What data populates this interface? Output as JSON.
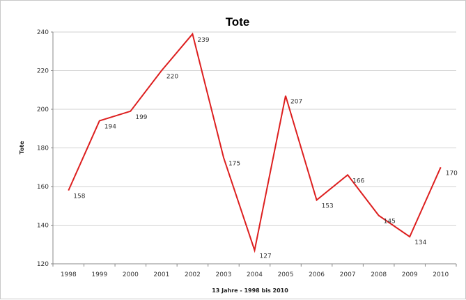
{
  "chart_data": {
    "type": "line",
    "title": "Tote",
    "xlabel": "13 Jahre - 1998 bis 2010",
    "ylabel": "Tote",
    "categories": [
      "1998",
      "1999",
      "2000",
      "2001",
      "2002",
      "2003",
      "2004",
      "2005",
      "2006",
      "2007",
      "2008",
      "2009",
      "2010"
    ],
    "series": [
      {
        "values": [
          158,
          194,
          199,
          220,
          239,
          175,
          127,
          207,
          153,
          166,
          145,
          134,
          170
        ]
      }
    ],
    "data_labels": [
      "158",
      "194",
      "199",
      "220",
      "239",
      "175",
      "127",
      "207",
      "153",
      "166",
      "145",
      "134",
      "170"
    ],
    "yticks": [
      120,
      140,
      160,
      180,
      200,
      220,
      240
    ],
    "ylim": [
      120,
      240
    ],
    "grid": true,
    "line_color": "#dd1f1f"
  }
}
